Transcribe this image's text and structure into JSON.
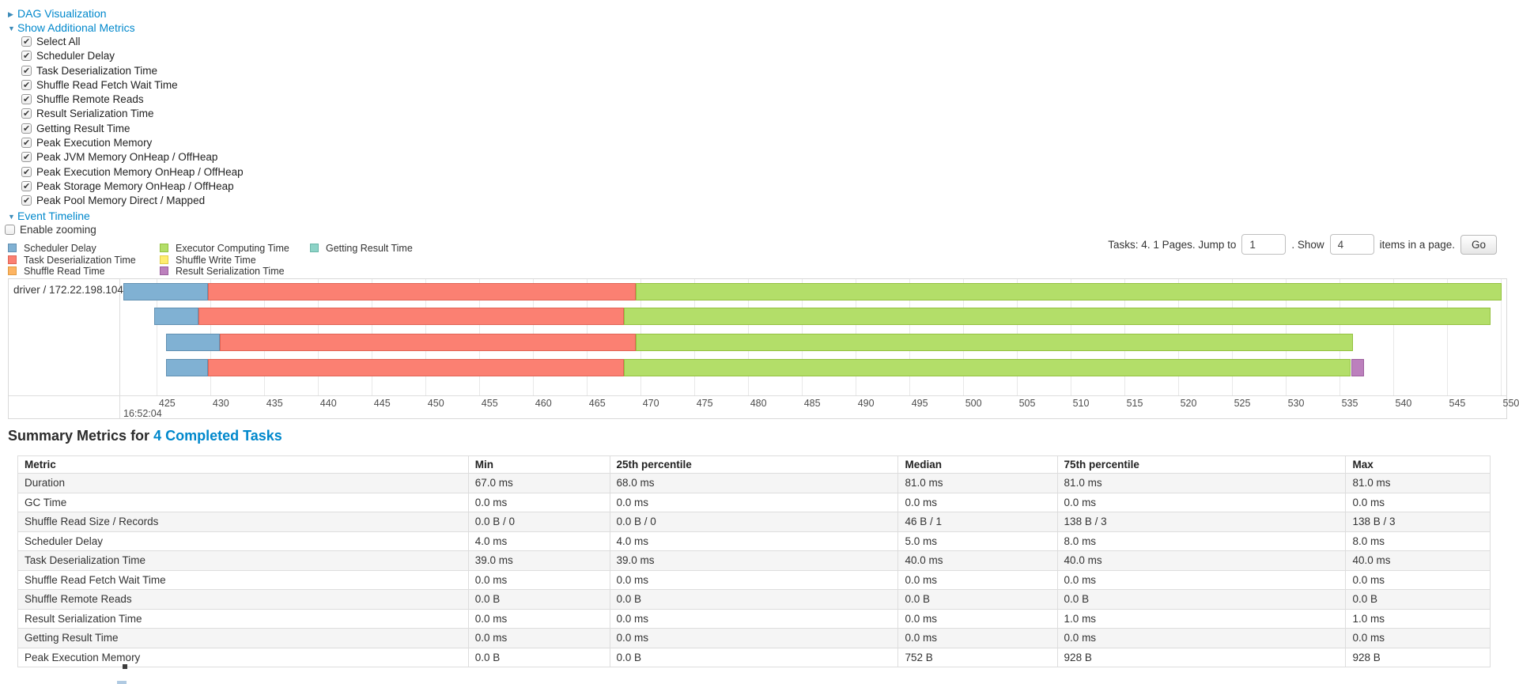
{
  "colors": {
    "link": "#0088cc",
    "segment_types": {
      "scheduler-delay": {
        "label": "Scheduler Delay",
        "fill": "#80B1D3",
        "border": "#6190B2"
      },
      "task-deserialization": {
        "label": "Task Deserialization Time",
        "fill": "#FB8072",
        "border": "#E06455"
      },
      "shuffle-read": {
        "label": "Shuffle Read Time",
        "fill": "#FDB462",
        "border": "#E09A42"
      },
      "executor-computing": {
        "label": "Executor Computing Time",
        "fill": "#B3DE69",
        "border": "#94C140"
      },
      "shuffle-write": {
        "label": "Shuffle Write Time",
        "fill": "#FFED6F",
        "border": "#E2CE4B"
      },
      "result-serialization": {
        "label": "Result Serialization Time",
        "fill": "#BC80BD",
        "border": "#9C5F9D"
      },
      "getting-result": {
        "label": "Getting Result Time",
        "fill": "#8DD3C7",
        "border": "#69B6A8"
      }
    }
  },
  "dag": {
    "label": "DAG Visualization",
    "arrow": "▶"
  },
  "additional_metrics": {
    "label": "Show Additional Metrics",
    "arrow": "▼",
    "items": [
      "Select All",
      "Scheduler Delay",
      "Task Deserialization Time",
      "Shuffle Read Fetch Wait Time",
      "Shuffle Remote Reads",
      "Result Serialization Time",
      "Getting Result Time",
      "Peak Execution Memory",
      "Peak JVM Memory OnHeap / OffHeap",
      "Peak Execution Memory OnHeap / OffHeap",
      "Peak Storage Memory OnHeap / OffHeap",
      "Peak Pool Memory Direct / Mapped"
    ]
  },
  "event_timeline": {
    "label": "Event Timeline",
    "arrow": "▼",
    "enable_zooming_label": "Enable zooming"
  },
  "legend": {
    "columns": [
      [
        "scheduler-delay",
        "task-deserialization",
        "shuffle-read"
      ],
      [
        "executor-computing",
        "shuffle-write",
        "result-serialization"
      ],
      [
        "getting-result"
      ]
    ]
  },
  "pagination": {
    "prefix": "Tasks: 4. 1 Pages. Jump to",
    "jump_value": "1",
    "mid": ". Show",
    "show_value": "4",
    "suffix": "items in a page.",
    "go_label": "Go"
  },
  "timeline": {
    "group_label": "driver / 172.22.198.104",
    "axis": {
      "window_min": 421.7,
      "window_max": 550.55,
      "tick_min": 425,
      "tick_max": 550,
      "tick_step": 5,
      "major_label": "16:52:04",
      "unit": "ms"
    },
    "tasks": [
      {
        "name": "task-0",
        "segments": [
          {
            "type": "scheduler-delay",
            "start": 421.9,
            "end": 429.8
          },
          {
            "type": "task-deserialization",
            "start": 429.8,
            "end": 469.6
          },
          {
            "type": "executor-computing",
            "start": 469.6,
            "end": 550.1
          }
        ]
      },
      {
        "name": "task-1",
        "segments": [
          {
            "type": "scheduler-delay",
            "start": 424.8,
            "end": 428.9
          },
          {
            "type": "task-deserialization",
            "start": 428.9,
            "end": 468.5
          },
          {
            "type": "executor-computing",
            "start": 468.5,
            "end": 549.1
          }
        ]
      },
      {
        "name": "task-2",
        "segments": [
          {
            "type": "scheduler-delay",
            "start": 425.9,
            "end": 430.9
          },
          {
            "type": "task-deserialization",
            "start": 430.9,
            "end": 469.6
          },
          {
            "type": "executor-computing",
            "start": 469.6,
            "end": 536.3
          }
        ]
      },
      {
        "name": "task-3",
        "segments": [
          {
            "type": "scheduler-delay",
            "start": 425.9,
            "end": 429.8
          },
          {
            "type": "task-deserialization",
            "start": 429.8,
            "end": 468.5
          },
          {
            "type": "executor-computing",
            "start": 468.5,
            "end": 536.1
          },
          {
            "type": "result-serialization",
            "start": 536.1,
            "end": 537.3
          }
        ]
      }
    ]
  },
  "summary": {
    "title_prefix": "Summary Metrics for",
    "title_link": "4 Completed Tasks",
    "table": {
      "headers": [
        "Metric",
        "Min",
        "25th percentile",
        "Median",
        "75th percentile",
        "Max"
      ],
      "rows": [
        [
          "Duration",
          "67.0 ms",
          "68.0 ms",
          "81.0 ms",
          "81.0 ms",
          "81.0 ms"
        ],
        [
          "GC Time",
          "0.0 ms",
          "0.0 ms",
          "0.0 ms",
          "0.0 ms",
          "0.0 ms"
        ],
        [
          "Shuffle Read Size / Records",
          "0.0 B / 0",
          "0.0 B / 0",
          "46 B / 1",
          "138 B / 3",
          "138 B / 3"
        ],
        [
          "Scheduler Delay",
          "4.0 ms",
          "4.0 ms",
          "5.0 ms",
          "8.0 ms",
          "8.0 ms"
        ],
        [
          "Task Deserialization Time",
          "39.0 ms",
          "39.0 ms",
          "40.0 ms",
          "40.0 ms",
          "40.0 ms"
        ],
        [
          "Shuffle Read Fetch Wait Time",
          "0.0 ms",
          "0.0 ms",
          "0.0 ms",
          "0.0 ms",
          "0.0 ms"
        ],
        [
          "Shuffle Remote Reads",
          "0.0 B",
          "0.0 B",
          "0.0 B",
          "0.0 B",
          "0.0 B"
        ],
        [
          "Result Serialization Time",
          "0.0 ms",
          "0.0 ms",
          "0.0 ms",
          "1.0 ms",
          "1.0 ms"
        ],
        [
          "Getting Result Time",
          "0.0 ms",
          "0.0 ms",
          "0.0 ms",
          "0.0 ms",
          "0.0 ms"
        ],
        [
          "Peak Execution Memory",
          "0.0 B",
          "0.0 B",
          "752 B",
          "928 B",
          "928 B"
        ]
      ]
    }
  }
}
